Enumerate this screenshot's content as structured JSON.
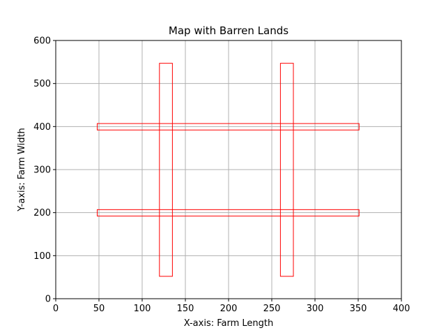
{
  "chart_data": {
    "type": "rectangles",
    "title": "Map with Barren Lands",
    "xlabel": "X-axis: Farm Length",
    "ylabel": "Y-axis: Farm Width",
    "xlim": [
      0,
      400
    ],
    "ylim": [
      0,
      600
    ],
    "xticks": [
      0,
      50,
      100,
      150,
      200,
      250,
      300,
      350,
      400
    ],
    "yticks": [
      0,
      100,
      200,
      300,
      400,
      500,
      600
    ],
    "grid": true,
    "rect_color": "#ff0000",
    "grid_color": "#b0b0b0",
    "rectangles": [
      {
        "x0": 48,
        "y0": 192,
        "x1": 351,
        "y1": 207
      },
      {
        "x0": 48,
        "y0": 392,
        "x1": 351,
        "y1": 407
      },
      {
        "x0": 120,
        "y0": 52,
        "x1": 135,
        "y1": 547
      },
      {
        "x0": 260,
        "y0": 52,
        "x1": 275,
        "y1": 547
      }
    ]
  }
}
